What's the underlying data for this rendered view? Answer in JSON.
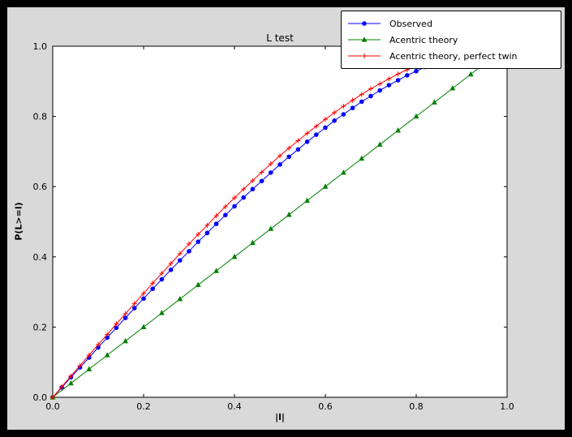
{
  "window": {
    "frame_color": "#000000",
    "figure_color": "#d9d9d9",
    "axes_color": "#ffffff"
  },
  "chart_data": {
    "type": "line",
    "title": "L test",
    "xlabel": "|l|",
    "ylabel": "P(L>=l)",
    "xlim": [
      0,
      1
    ],
    "ylim": [
      0,
      1
    ],
    "xticks": [
      0.0,
      0.2,
      0.4,
      0.6,
      0.8,
      1.0
    ],
    "yticks": [
      0.0,
      0.2,
      0.4,
      0.6,
      0.8,
      1.0
    ],
    "grid": false,
    "legend_position": "upper right",
    "series": [
      {
        "name": "Observed",
        "color": "#0000ff",
        "marker": "circle",
        "x": [
          0,
          0.02,
          0.04,
          0.06,
          0.08,
          0.1,
          0.12,
          0.14,
          0.16,
          0.18,
          0.2,
          0.22,
          0.24,
          0.26,
          0.28,
          0.3,
          0.32,
          0.34,
          0.36,
          0.38,
          0.4,
          0.42,
          0.44,
          0.46,
          0.48,
          0.5,
          0.52,
          0.54,
          0.56,
          0.58,
          0.6,
          0.62,
          0.64,
          0.66,
          0.68,
          0.7,
          0.72,
          0.74,
          0.76,
          0.78,
          0.8,
          0.82,
          0.84,
          0.86
        ],
        "y": [
          0,
          0.028,
          0.057,
          0.085,
          0.113,
          0.142,
          0.17,
          0.198,
          0.226,
          0.254,
          0.281,
          0.309,
          0.336,
          0.363,
          0.39,
          0.416,
          0.443,
          0.468,
          0.494,
          0.519,
          0.544,
          0.569,
          0.593,
          0.616,
          0.64,
          0.663,
          0.685,
          0.706,
          0.728,
          0.748,
          0.768,
          0.788,
          0.806,
          0.824,
          0.842,
          0.858,
          0.874,
          0.889,
          0.903,
          0.917,
          0.929,
          0.941,
          0.952,
          0.961
        ]
      },
      {
        "name": "Acentric theory",
        "color": "#008000",
        "marker": "triangle",
        "x": [
          0,
          0.04,
          0.08,
          0.12,
          0.16,
          0.2,
          0.24,
          0.28,
          0.32,
          0.36,
          0.4,
          0.44,
          0.48,
          0.52,
          0.56,
          0.6,
          0.64,
          0.68,
          0.72,
          0.76,
          0.8,
          0.84,
          0.88,
          0.92,
          0.96
        ],
        "y": [
          0,
          0.04,
          0.08,
          0.12,
          0.16,
          0.2,
          0.24,
          0.28,
          0.32,
          0.36,
          0.4,
          0.44,
          0.48,
          0.52,
          0.56,
          0.6,
          0.64,
          0.68,
          0.72,
          0.76,
          0.8,
          0.84,
          0.88,
          0.92,
          0.96
        ]
      },
      {
        "name": "Acentric theory, perfect twin",
        "color": "#ff0000",
        "marker": "plus",
        "x": [
          0,
          0.02,
          0.04,
          0.06,
          0.08,
          0.1,
          0.12,
          0.14,
          0.16,
          0.18,
          0.2,
          0.22,
          0.24,
          0.26,
          0.28,
          0.3,
          0.32,
          0.34,
          0.36,
          0.38,
          0.4,
          0.42,
          0.44,
          0.46,
          0.48,
          0.5,
          0.52,
          0.54,
          0.56,
          0.58,
          0.6,
          0.62,
          0.64,
          0.66,
          0.68,
          0.7,
          0.72,
          0.74,
          0.76,
          0.78,
          0.8,
          0.82,
          0.84,
          0.86
        ],
        "y": [
          0,
          0.03,
          0.06,
          0.09,
          0.12,
          0.15,
          0.179,
          0.209,
          0.238,
          0.267,
          0.296,
          0.325,
          0.353,
          0.381,
          0.409,
          0.437,
          0.464,
          0.49,
          0.517,
          0.543,
          0.568,
          0.593,
          0.617,
          0.641,
          0.665,
          0.688,
          0.71,
          0.731,
          0.752,
          0.772,
          0.792,
          0.811,
          0.829,
          0.846,
          0.863,
          0.879,
          0.893,
          0.907,
          0.921,
          0.933,
          0.944,
          0.954,
          0.964,
          0.972
        ]
      }
    ]
  }
}
